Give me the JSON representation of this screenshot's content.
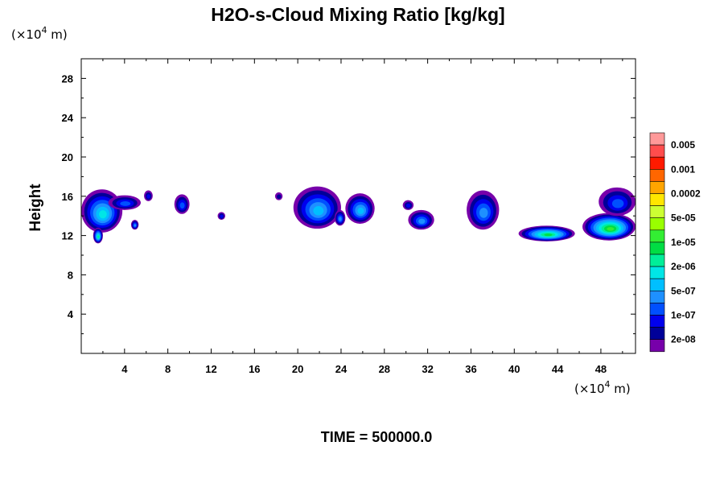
{
  "chart_data": {
    "type": "heatmap",
    "title": "H2O-s-Cloud Mixing Ratio [kg/kg]",
    "ylabel": "Height",
    "x_unit": {
      "prefix": "(×10",
      "exp": "4",
      "suffix": " m)"
    },
    "y_unit": {
      "prefix": "(×10",
      "exp": "4",
      "suffix": " m)"
    },
    "xlim": [
      0,
      51.2
    ],
    "ylim": [
      0,
      30
    ],
    "x_ticks": [
      "4",
      "8",
      "12",
      "16",
      "20",
      "24",
      "28",
      "32",
      "36",
      "40",
      "44",
      "48"
    ],
    "x_tick_values": [
      4,
      8,
      12,
      16,
      20,
      24,
      28,
      32,
      36,
      40,
      44,
      48
    ],
    "y_ticks": [
      "4",
      "8",
      "12",
      "16",
      "20",
      "24",
      "28"
    ],
    "y_tick_values": [
      4,
      8,
      12,
      16,
      20,
      24,
      28
    ],
    "time_label": "TIME = 500000.0",
    "colorbar": {
      "labels": [
        "0.005",
        "0.001",
        "0.0002",
        "5e-05",
        "1e-05",
        "2e-06",
        "5e-07",
        "1e-07",
        "2e-08"
      ],
      "colors": [
        "#ff9999",
        "#ff4d4d",
        "#ff1a00",
        "#ff6600",
        "#ffa500",
        "#ffe600",
        "#ccff33",
        "#99ff00",
        "#33ee33",
        "#00dd44",
        "#00ee99",
        "#00e6e6",
        "#00bfff",
        "#1e90ff",
        "#0050ff",
        "#0000ee",
        "#000099",
        "#7700aa"
      ]
    },
    "clouds": [
      {
        "x0": 0.0,
        "x1": 3.8,
        "ybot": 12.3,
        "ytop": 16.7,
        "peak_level": 6
      },
      {
        "x0": 1.1,
        "x1": 2.0,
        "ybot": 11.2,
        "ytop": 12.8,
        "peak_level": 7
      },
      {
        "x0": 2.5,
        "x1": 5.5,
        "ybot": 14.6,
        "ytop": 16.1,
        "peak_level": 3
      },
      {
        "x0": 4.6,
        "x1": 5.3,
        "ybot": 12.6,
        "ytop": 13.6,
        "peak_level": 4
      },
      {
        "x0": 5.8,
        "x1": 6.6,
        "ybot": 15.5,
        "ytop": 16.6,
        "peak_level": 2
      },
      {
        "x0": 8.6,
        "x1": 10.0,
        "ybot": 14.2,
        "ytop": 16.2,
        "peak_level": 3
      },
      {
        "x0": 12.6,
        "x1": 13.3,
        "ybot": 13.6,
        "ytop": 14.4,
        "peak_level": 2
      },
      {
        "x0": 17.9,
        "x1": 18.6,
        "ybot": 15.6,
        "ytop": 16.4,
        "peak_level": 1
      },
      {
        "x0": 19.6,
        "x1": 24.0,
        "ybot": 12.7,
        "ytop": 17.0,
        "peak_level": 5
      },
      {
        "x0": 23.4,
        "x1": 24.4,
        "ybot": 13.0,
        "ytop": 14.6,
        "peak_level": 4
      },
      {
        "x0": 24.4,
        "x1": 27.1,
        "ybot": 13.2,
        "ytop": 16.3,
        "peak_level": 5
      },
      {
        "x0": 29.7,
        "x1": 30.7,
        "ybot": 14.6,
        "ytop": 15.6,
        "peak_level": 2
      },
      {
        "x0": 30.2,
        "x1": 32.6,
        "ybot": 12.6,
        "ytop": 14.6,
        "peak_level": 4
      },
      {
        "x0": 35.6,
        "x1": 38.6,
        "ybot": 12.6,
        "ytop": 16.6,
        "peak_level": 4
      },
      {
        "x0": 40.4,
        "x1": 45.6,
        "ybot": 11.4,
        "ytop": 13.0,
        "peak_level": 8
      },
      {
        "x0": 46.3,
        "x1": 51.2,
        "ybot": 11.5,
        "ytop": 14.3,
        "peak_level": 9
      },
      {
        "x0": 47.8,
        "x1": 51.2,
        "ybot": 14.0,
        "ytop": 16.9,
        "peak_level": 3
      }
    ]
  }
}
